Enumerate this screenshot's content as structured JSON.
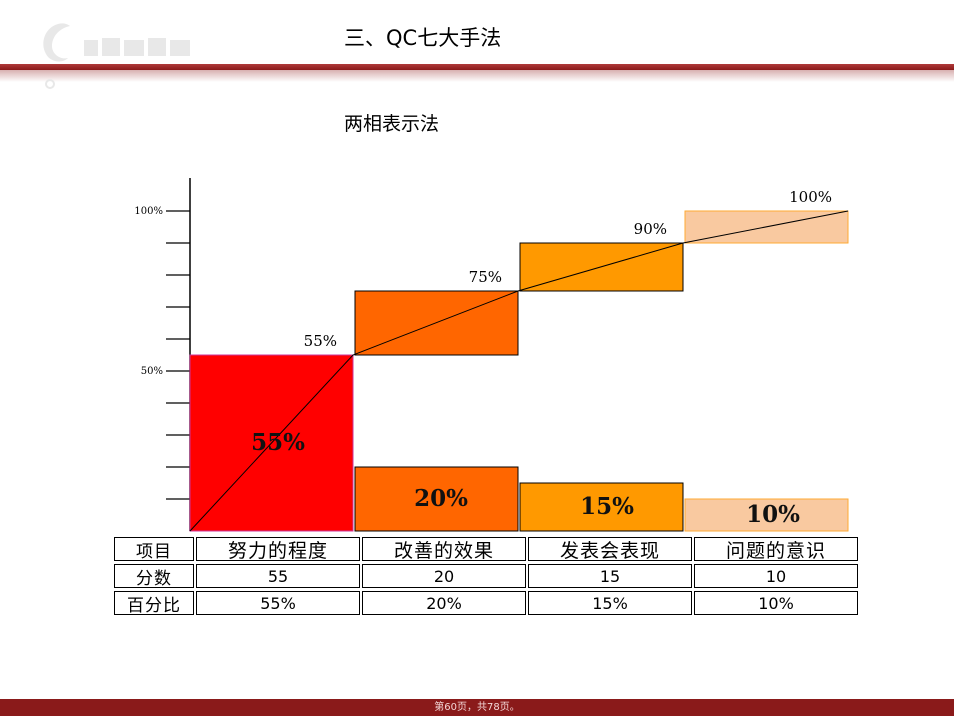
{
  "header": {
    "title": "三、QC七大手法",
    "subtitle": "两相表示法"
  },
  "colors": {
    "bar_1": "#ff0000",
    "bar_2": "#ff6600",
    "bar_3": "#ff9900",
    "bar_4": "#f9c9a0",
    "band": "#8a1a1a"
  },
  "chart_data": {
    "type": "bar",
    "title": "",
    "xlabel": "",
    "ylabel": "",
    "ylim": [
      0,
      110
    ],
    "yticks": [
      {
        "value": 100,
        "label": "100%"
      },
      {
        "value": 50,
        "label": "50%"
      }
    ],
    "ytick_step": 10,
    "categories": [
      "努力的程度",
      "改善的效果",
      "发表会表现",
      "问题的意识"
    ],
    "values": [
      55,
      20,
      15,
      10
    ],
    "value_labels": [
      "55%",
      "20%",
      "15%",
      "10%"
    ],
    "cumulative": [
      55,
      75,
      90,
      100
    ],
    "cumulative_labels": [
      "55%",
      "75%",
      "90%",
      "100%"
    ],
    "grid": false,
    "legend": "none"
  },
  "table": {
    "header": [
      "项目",
      "努力的程度",
      "改善的效果",
      "发表会表现",
      "问题的意识"
    ],
    "rows": [
      [
        "分数",
        "55",
        "20",
        "15",
        "10"
      ],
      [
        "百分比",
        "55%",
        "20%",
        "15%",
        "10%"
      ]
    ]
  },
  "footer": {
    "page_text": "第60页，共78页。"
  }
}
